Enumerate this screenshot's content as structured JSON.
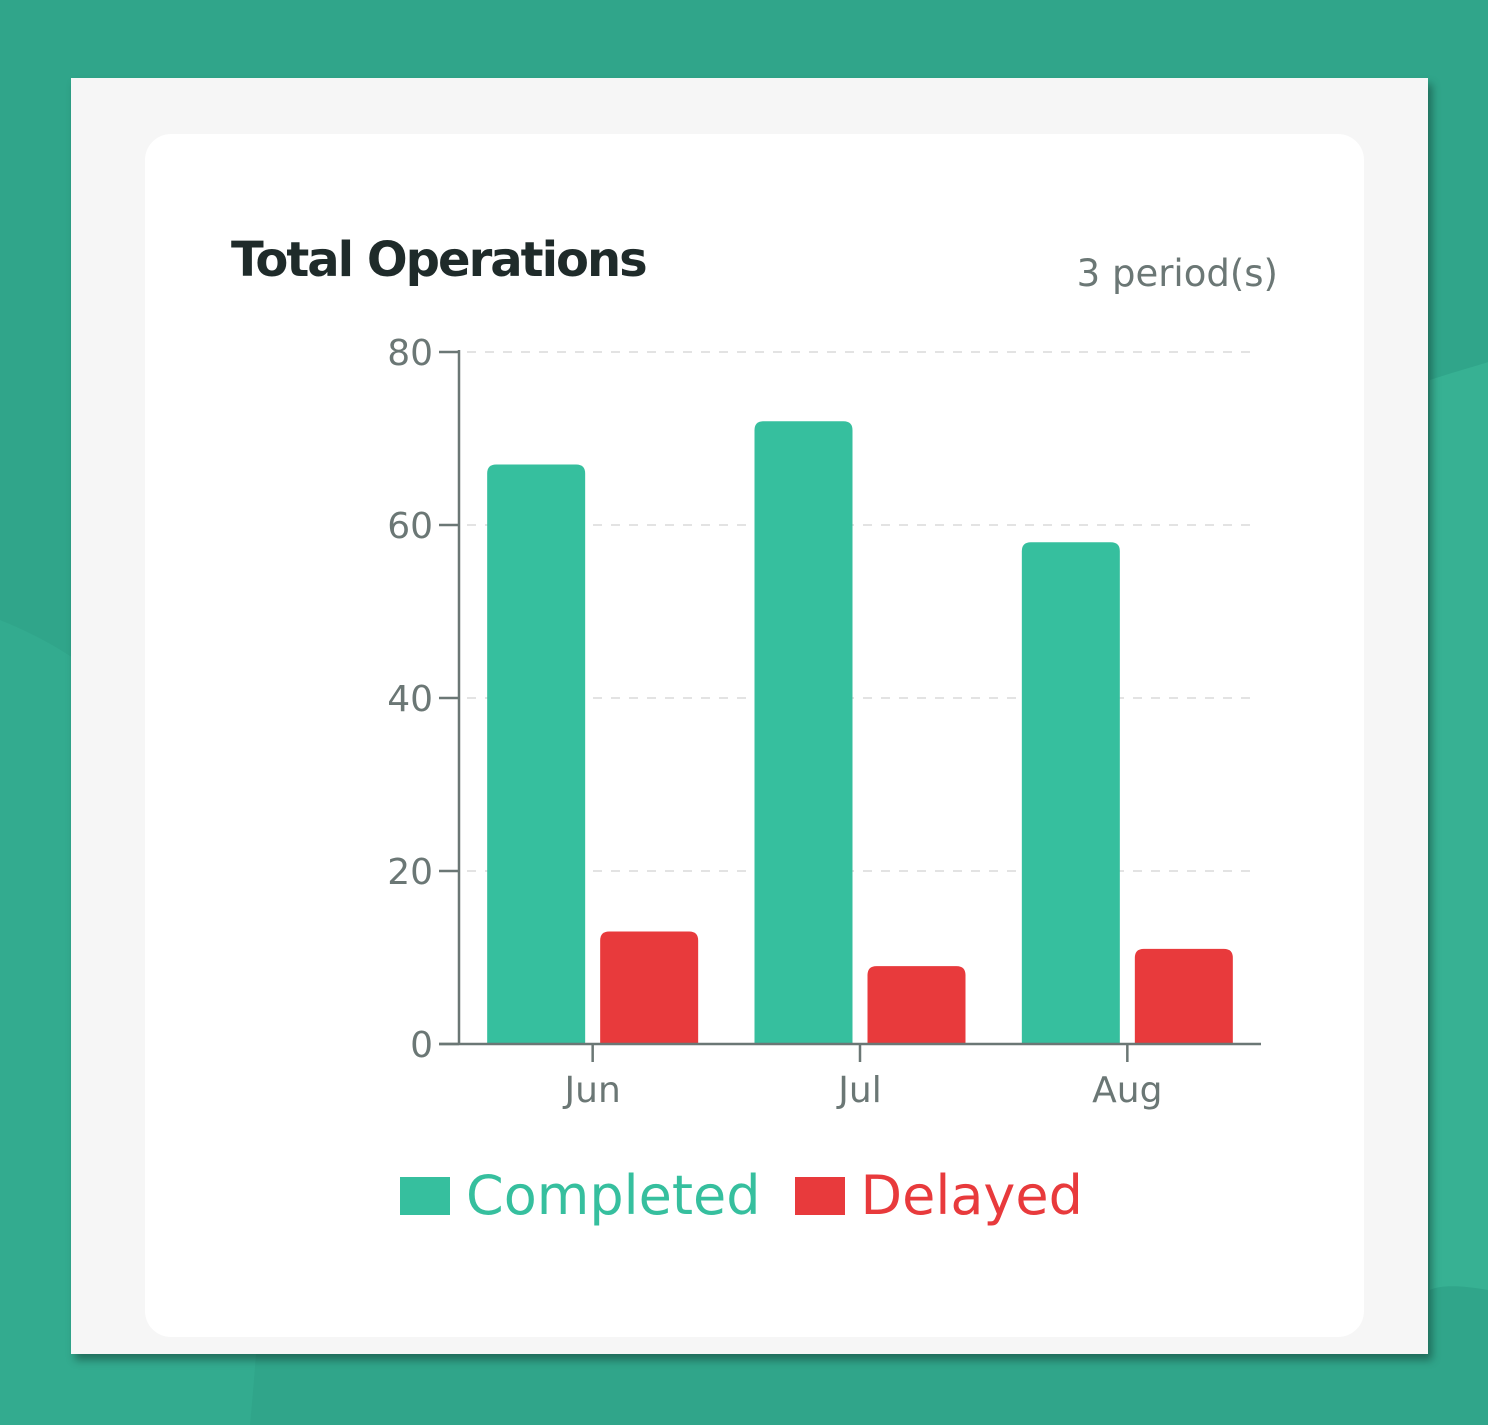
{
  "card": {
    "title": "Total Operations",
    "period_label": "3 period(s)"
  },
  "colors": {
    "background": "#30a58a",
    "completed": "#36bf9e",
    "delayed": "#e83a3c",
    "axis": "#6b7775",
    "grid": "#e3e3e3"
  },
  "chart_data": {
    "type": "bar",
    "title": "Total Operations",
    "xlabel": "",
    "ylabel": "",
    "categories": [
      "Jun",
      "Jul",
      "Aug"
    ],
    "series": [
      {
        "name": "Completed",
        "color": "#36bf9e",
        "values": [
          67,
          72,
          58
        ]
      },
      {
        "name": "Delayed",
        "color": "#e83a3c",
        "values": [
          13,
          9,
          11
        ]
      }
    ],
    "ylim": [
      0,
      80
    ],
    "yticks": [
      0,
      20,
      40,
      60,
      80
    ],
    "grid": true,
    "legend_position": "bottom"
  }
}
